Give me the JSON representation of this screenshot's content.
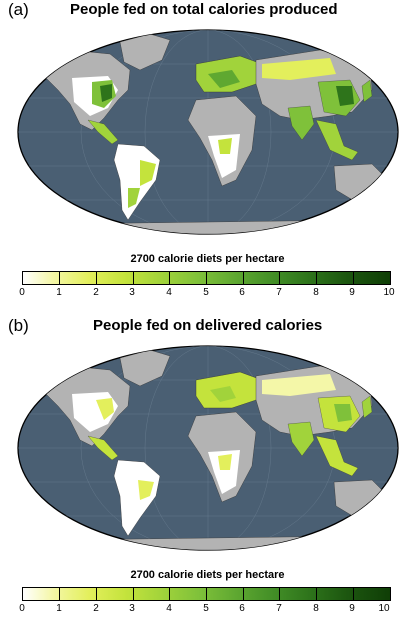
{
  "panels": [
    {
      "label": "(a)",
      "title": "People fed on total calories produced"
    },
    {
      "label": "(b)",
      "title": "People fed on delivered calories"
    }
  ],
  "colorbar": {
    "title": "2700 calorie diets per hectare",
    "ticks": [
      "0",
      "1",
      "2",
      "3",
      "4",
      "5",
      "6",
      "7",
      "8",
      "9",
      "10"
    ],
    "colors": [
      "#ffffff",
      "#f4f7a8",
      "#e3ef5c",
      "#c4e33c",
      "#a1d33b",
      "#7fc13a",
      "#5fa831",
      "#438f27",
      "#2e741b",
      "#1d5710",
      "#0f3e06"
    ]
  },
  "map_colors": {
    "ocean": "#4a5f73",
    "land_no_data": "#b3b3b3",
    "graticule": "#6b7f92"
  }
}
